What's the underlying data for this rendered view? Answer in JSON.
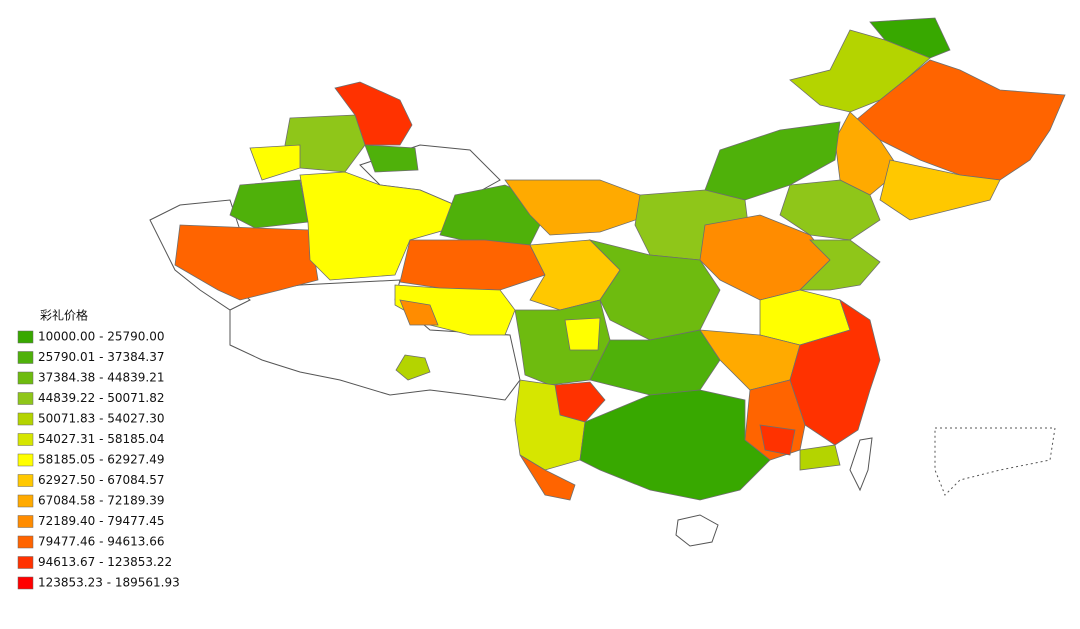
{
  "legend": {
    "title": "彩礼价格",
    "items": [
      {
        "label": "10000.00 - 25790.00",
        "color": "#38a800"
      },
      {
        "label": "25790.01 - 37384.37",
        "color": "#4fb10a"
      },
      {
        "label": "37384.38 - 44839.21",
        "color": "#6ebb0f"
      },
      {
        "label": "44839.22 - 50071.82",
        "color": "#8fc619"
      },
      {
        "label": "50071.83 - 54027.30",
        "color": "#b4d400"
      },
      {
        "label": "54027.31 - 58185.04",
        "color": "#d6e600"
      },
      {
        "label": "58185.05 - 62927.49",
        "color": "#ffff00"
      },
      {
        "label": "62927.50 - 67084.57",
        "color": "#ffc800"
      },
      {
        "label": "67084.58 - 72189.39",
        "color": "#ffaa00"
      },
      {
        "label": "72189.40 - 79477.45",
        "color": "#ff8c00"
      },
      {
        "label": "79477.46 - 94613.66",
        "color": "#ff6400"
      },
      {
        "label": "94613.67 - 123853.22",
        "color": "#ff3200"
      },
      {
        "label": "123853.23 - 189561.93",
        "color": "#ff0000"
      }
    ]
  }
}
